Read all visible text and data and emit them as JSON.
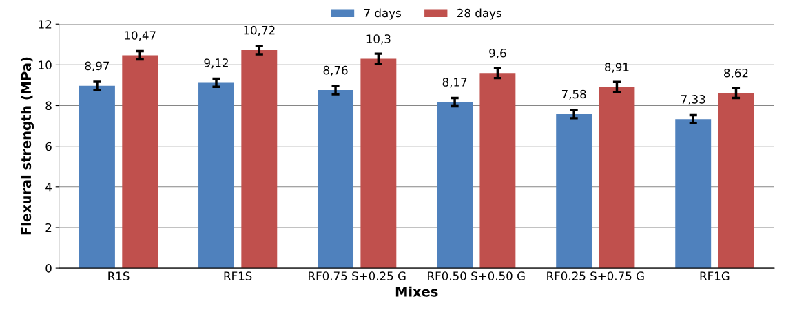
{
  "chart_data": {
    "type": "bar",
    "xlabel": "Mixes",
    "ylabel": "Flexural strength (MPa)",
    "categories": [
      "R1S",
      "RF1S",
      "RF0.75 S+0.25 G",
      "RF0.50 S+0.50 G",
      "RF0.25 S+0.75 G",
      "RF1G"
    ],
    "series": [
      {
        "name": "7 days",
        "color": "#4f81bd",
        "values": [
          8.97,
          9.12,
          8.76,
          8.17,
          7.58,
          7.33
        ],
        "errors": [
          0.2,
          0.2,
          0.2,
          0.2,
          0.2,
          0.2
        ],
        "value_labels": [
          "8,97",
          "9,12",
          "8,76",
          "8,17",
          "7,58",
          "7,33"
        ]
      },
      {
        "name": "28 days",
        "color": "#c0504d",
        "values": [
          10.47,
          10.72,
          10.3,
          9.6,
          8.91,
          8.62
        ],
        "errors": [
          0.2,
          0.2,
          0.25,
          0.25,
          0.25,
          0.25
        ],
        "value_labels": [
          "10,47",
          "10,72",
          "10,3",
          "9,6",
          "8,91",
          "8,62"
        ]
      }
    ],
    "ylim": [
      0,
      12
    ],
    "yticks": [
      0,
      2,
      4,
      6,
      8,
      10,
      12
    ],
    "grid": "y",
    "legend": "top"
  }
}
